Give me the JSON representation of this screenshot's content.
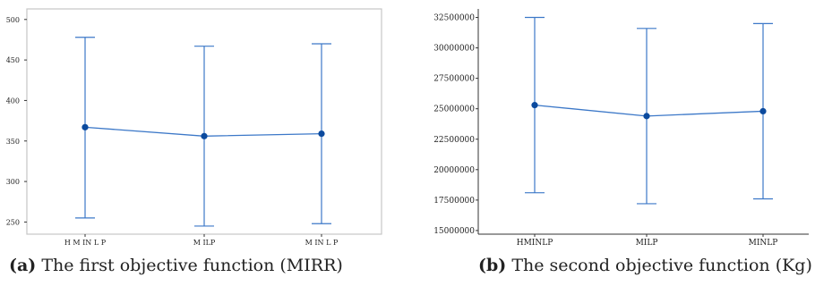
{
  "chart_data": [
    {
      "type": "line",
      "panel_label": "(a)",
      "caption": "The first objective function (MIRR)",
      "categories": [
        "HMINLP",
        "MILP",
        "MINLP"
      ],
      "category_labels": [
        "H M IN L P",
        "M ILP",
        "M IN L P"
      ],
      "series": [
        {
          "mean": [
            367,
            356,
            359
          ],
          "lower": [
            255,
            245,
            248
          ],
          "upper": [
            478,
            467,
            470
          ]
        }
      ],
      "yticks": [
        250,
        300,
        350,
        400,
        450,
        500
      ],
      "ylim": [
        235,
        513
      ],
      "grid": false,
      "legend": "none",
      "frame": true
    },
    {
      "type": "line",
      "panel_label": "(b)",
      "caption": "The second objective function (Kg)",
      "categories": [
        "HMINLP",
        "MILP",
        "MINLP"
      ],
      "category_labels": [
        "HMINLP",
        "MILP",
        "MINLP"
      ],
      "series": [
        {
          "mean": [
            25300000,
            24400000,
            24800000
          ],
          "lower": [
            18100000,
            17200000,
            17600000
          ],
          "upper": [
            32500000,
            31600000,
            32000000
          ]
        }
      ],
      "yticks": [
        15000000,
        17500000,
        20000000,
        22500000,
        25000000,
        27500000,
        30000000,
        32500000
      ],
      "ylim": [
        14700000,
        33200000
      ],
      "grid": false,
      "legend": "none",
      "frame": false
    }
  ],
  "colors": {
    "series": "#3c78c8",
    "marker": "#0b4a9e",
    "frame": "#c6c6c6",
    "axis": "#333333",
    "text": "#222222"
  }
}
